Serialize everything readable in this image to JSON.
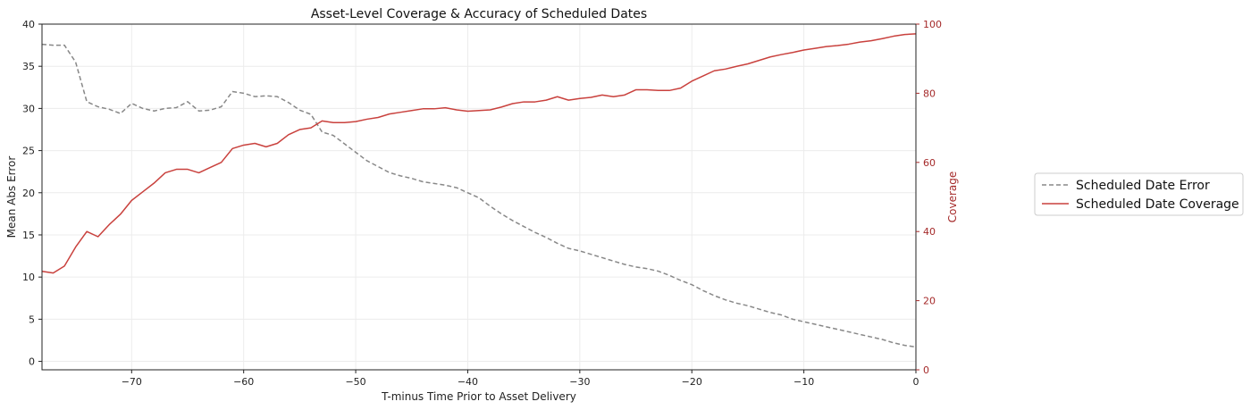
{
  "chart_data": {
    "type": "line",
    "title": "Asset-Level Coverage & Accuracy of Scheduled Dates",
    "xlabel": "T-minus Time Prior to Asset Delivery",
    "ylabel_left": "Mean Abs Error",
    "ylabel_right": "Coverage",
    "xlim": [
      -78,
      0
    ],
    "ylim_left": [
      -1,
      40
    ],
    "ylim_right": [
      0,
      100
    ],
    "x_ticks": [
      -70,
      -60,
      -50,
      -40,
      -30,
      -20,
      -10,
      0
    ],
    "x_tick_labels": [
      "−70",
      "−60",
      "−50",
      "−40",
      "−30",
      "−20",
      "−10",
      "0"
    ],
    "y_left_ticks": [
      0,
      5,
      10,
      15,
      20,
      25,
      30,
      35,
      40
    ],
    "y_left_tick_labels": [
      "0",
      "5",
      "10",
      "15",
      "20",
      "25",
      "30",
      "35",
      "40"
    ],
    "y_right_ticks": [
      0,
      20,
      40,
      60,
      80,
      100
    ],
    "y_right_tick_labels": [
      "0",
      "20",
      "40",
      "60",
      "80",
      "100"
    ],
    "grid": true,
    "legend_position": "right-outside",
    "x": [
      -78,
      -77,
      -76,
      -75,
      -74,
      -73,
      -72,
      -71,
      -70,
      -69,
      -68,
      -67,
      -66,
      -65,
      -64,
      -63,
      -62,
      -61,
      -60,
      -59,
      -58,
      -57,
      -56,
      -55,
      -54,
      -53,
      -52,
      -51,
      -50,
      -49,
      -48,
      -47,
      -46,
      -45,
      -44,
      -43,
      -42,
      -41,
      -40,
      -39,
      -38,
      -37,
      -36,
      -35,
      -34,
      -33,
      -32,
      -31,
      -30,
      -29,
      -28,
      -27,
      -26,
      -25,
      -24,
      -23,
      -22,
      -21,
      -20,
      -19,
      -18,
      -17,
      -16,
      -15,
      -14,
      -13,
      -12,
      -11,
      -10,
      -9,
      -8,
      -7,
      -6,
      -5,
      -4,
      -3,
      -2,
      -1,
      0
    ],
    "series": [
      {
        "name": "Scheduled Date Error",
        "axis": "left",
        "color": "#888888",
        "dash": "dashed",
        "values": [
          37.6,
          37.5,
          37.5,
          35.5,
          30.8,
          30.2,
          29.9,
          29.4,
          30.6,
          30.0,
          29.7,
          30.0,
          30.1,
          30.8,
          29.7,
          29.8,
          30.2,
          32.0,
          31.8,
          31.4,
          31.5,
          31.4,
          30.7,
          29.8,
          29.3,
          27.2,
          26.8,
          25.8,
          24.8,
          23.8,
          23.1,
          22.4,
          22.0,
          21.7,
          21.3,
          21.1,
          20.9,
          20.6,
          20.0,
          19.4,
          18.4,
          17.5,
          16.7,
          16.0,
          15.3,
          14.7,
          14.0,
          13.4,
          13.1,
          12.7,
          12.3,
          11.9,
          11.5,
          11.2,
          11.0,
          10.7,
          10.2,
          9.6,
          9.1,
          8.4,
          7.8,
          7.3,
          6.9,
          6.6,
          6.2,
          5.8,
          5.5,
          5.0,
          4.7,
          4.4,
          4.1,
          3.8,
          3.5,
          3.2,
          2.9,
          2.6,
          2.2,
          1.9,
          1.7
        ]
      },
      {
        "name": "Scheduled Date Coverage",
        "axis": "right",
        "color": "#c9413d",
        "dash": "solid",
        "values": [
          28.5,
          28.0,
          30.0,
          35.5,
          40.0,
          38.5,
          42.0,
          45.0,
          49.0,
          51.5,
          54.0,
          57.0,
          58.0,
          58.0,
          57.0,
          58.5,
          60.0,
          64.0,
          65.0,
          65.5,
          64.5,
          65.5,
          68.0,
          69.5,
          70.0,
          72.0,
          71.5,
          71.5,
          71.8,
          72.5,
          73.0,
          74.0,
          74.5,
          75.0,
          75.5,
          75.5,
          75.8,
          75.2,
          74.8,
          75.0,
          75.2,
          76.0,
          77.0,
          77.5,
          77.5,
          78.0,
          79.0,
          78.0,
          78.5,
          78.8,
          79.5,
          79.0,
          79.5,
          81.0,
          81.0,
          80.8,
          80.8,
          81.5,
          83.5,
          85.0,
          86.5,
          87.0,
          87.8,
          88.5,
          89.5,
          90.5,
          91.2,
          91.8,
          92.5,
          93.0,
          93.5,
          93.8,
          94.2,
          94.8,
          95.2,
          95.8,
          96.5,
          97.0,
          97.2
        ]
      }
    ]
  }
}
